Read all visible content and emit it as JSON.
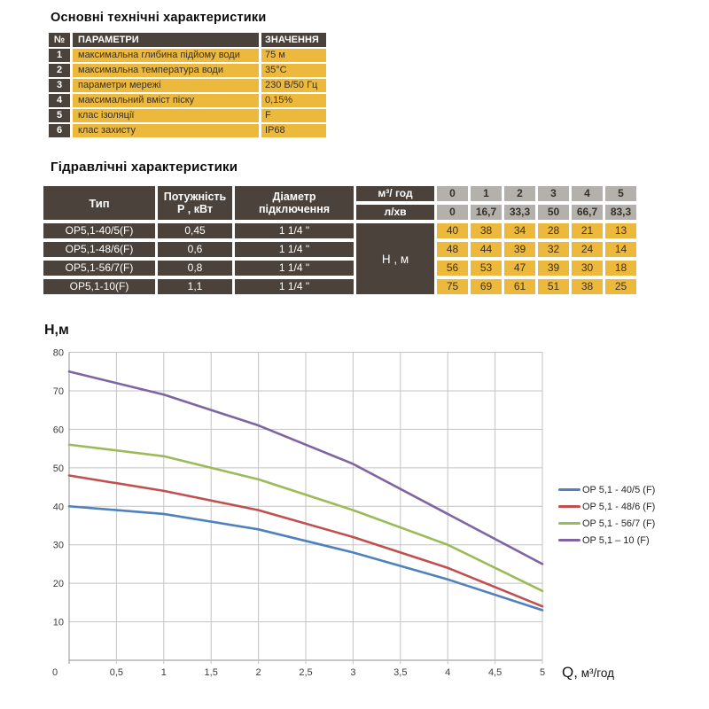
{
  "colors": {
    "dark_cell": "#4a423b",
    "yellow_cell": "#edb93d",
    "gray_cell": "#b4b0ac",
    "light_text": "#ffffff",
    "dark_text": "#35302a",
    "grid": "#c3c3c3",
    "axis": "#8f8f8f",
    "tick_text": "#3c3c3c",
    "legend_text": "#262626"
  },
  "tech_table": {
    "title": "Основні технічні характеристики",
    "headers": {
      "num": "№",
      "param": "ПАРАМЕТРИ",
      "value": "ЗНАЧЕННЯ"
    },
    "rows": [
      {
        "num": "1",
        "param": "максимальна глибина підйому води",
        "value": "75 м"
      },
      {
        "num": "2",
        "param": "максимальна температура води",
        "value": "35°С"
      },
      {
        "num": "3",
        "param": "параметри мережі",
        "value": "230 В/50 Гц"
      },
      {
        "num": "4",
        "param": "максимальний вміст піску",
        "value": "0,15%"
      },
      {
        "num": "5",
        "param": "клас ізоляції",
        "value": "F"
      },
      {
        "num": "6",
        "param": "клас захисту",
        "value": "IP68"
      }
    ]
  },
  "hydraulic_table": {
    "title": "Гідравлічні характеристики",
    "col_type": "Тип",
    "col_power_l1": "Потужність",
    "col_power_l2": "Р , кВт",
    "col_diam_l1": "Діаметр",
    "col_diam_l2": "підключення",
    "unit_hour": "м³/ год",
    "unit_min": "л/хв",
    "flow_hour": [
      "0",
      "1",
      "2",
      "3",
      "4",
      "5"
    ],
    "flow_min": [
      "0",
      "16,7",
      "33,3",
      "50",
      "66,7",
      "83,3"
    ],
    "head_label": "Н , м",
    "rows": [
      {
        "type": "ОР5,1-40/5(F)",
        "power": "0,45",
        "diam": "1 1/4 \"",
        "heads": [
          "40",
          "38",
          "34",
          "28",
          "21",
          "13"
        ]
      },
      {
        "type": "ОР5,1-48/6(F)",
        "power": "0,6",
        "diam": "1 1/4 \"",
        "heads": [
          "48",
          "44",
          "39",
          "32",
          "24",
          "14"
        ]
      },
      {
        "type": "ОР5,1-56/7(F)",
        "power": "0,8",
        "diam": "1 1/4 \"",
        "heads": [
          "56",
          "53",
          "47",
          "39",
          "30",
          "18"
        ]
      },
      {
        "type": "ОР5,1-10(F)",
        "power": "1,1",
        "diam": "1 1/4 \"",
        "heads": [
          "75",
          "69",
          "61",
          "51",
          "38",
          "25"
        ]
      }
    ]
  },
  "chart": {
    "ylabel": "Н,м",
    "xlabel_q": "Q,",
    "xlabel_unit": "  м³/год"
  },
  "chart_data": {
    "type": "line",
    "title": "",
    "ylabel": "Н,м",
    "xlabel": "Q, м³/год",
    "x": [
      0,
      1,
      2,
      3,
      4,
      5
    ],
    "xlim": [
      0,
      5
    ],
    "ylim": [
      0,
      80
    ],
    "x_ticks": [
      "0",
      "0,5",
      "1",
      "1,5",
      "2",
      "2,5",
      "3",
      "3,5",
      "4",
      "4,5",
      "5"
    ],
    "y_ticks": [
      10,
      20,
      30,
      40,
      50,
      60,
      70,
      80
    ],
    "grid": true,
    "grid_x_step": 0.5,
    "grid_y_step": 10,
    "legend_position": "right",
    "series": [
      {
        "name": "OP 5,1 - 40/5 (F)",
        "color": "#4F81BD",
        "values": [
          40,
          38,
          34,
          28,
          21,
          13
        ]
      },
      {
        "name": "OP 5,1 - 48/6 (F)",
        "color": "#C0504D",
        "values": [
          48,
          44,
          39,
          32,
          24,
          14
        ]
      },
      {
        "name": "OP 5,1 - 56/7 (F)",
        "color": "#9BBB59",
        "values": [
          56,
          53,
          47,
          39,
          30,
          18
        ]
      },
      {
        "name": "OP 5,1 – 10 (F)",
        "color": "#8064A2",
        "values": [
          75,
          69,
          61,
          51,
          38,
          25
        ]
      }
    ]
  }
}
